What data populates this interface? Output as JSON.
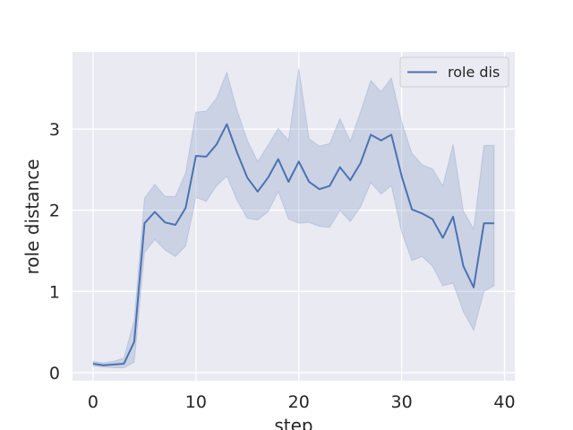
{
  "chart_data": {
    "type": "line",
    "xlabel": "step",
    "ylabel": "role distance",
    "xlim": [
      -2,
      41
    ],
    "ylim": [
      -0.1,
      3.95
    ],
    "xticks": [
      0,
      10,
      20,
      30,
      40
    ],
    "yticks": [
      0,
      1,
      2,
      3
    ],
    "grid": true,
    "legend_position": "top-right",
    "colors": {
      "line": "#4c72b0",
      "band": "#4c72b0",
      "background": "#eaeaf2",
      "grid": "#ffffff"
    },
    "series": [
      {
        "name": "role dis",
        "x": [
          0,
          1,
          2,
          3,
          4,
          5,
          6,
          7,
          8,
          9,
          10,
          11,
          12,
          13,
          14,
          15,
          16,
          17,
          18,
          19,
          20,
          21,
          22,
          23,
          24,
          25,
          26,
          27,
          28,
          29,
          30,
          31,
          32,
          33,
          34,
          35,
          36,
          37,
          38,
          39
        ],
        "y": [
          0.11,
          0.09,
          0.1,
          0.11,
          0.38,
          1.84,
          1.98,
          1.85,
          1.82,
          2.03,
          2.67,
          2.66,
          2.81,
          3.06,
          2.71,
          2.4,
          2.23,
          2.4,
          2.63,
          2.35,
          2.6,
          2.35,
          2.26,
          2.3,
          2.53,
          2.37,
          2.58,
          2.93,
          2.86,
          2.93,
          2.42,
          2.01,
          1.96,
          1.89,
          1.66,
          1.92,
          1.31,
          1.05,
          1.84,
          1.84
        ],
        "lower": [
          0.08,
          0.07,
          0.06,
          0.06,
          0.13,
          1.48,
          1.64,
          1.51,
          1.43,
          1.56,
          2.16,
          2.11,
          2.3,
          2.42,
          2.12,
          1.9,
          1.88,
          1.98,
          2.23,
          1.89,
          1.84,
          1.85,
          1.8,
          1.79,
          2.0,
          1.86,
          2.04,
          2.34,
          2.2,
          2.3,
          1.73,
          1.38,
          1.43,
          1.31,
          1.07,
          1.1,
          0.75,
          0.52,
          1.0,
          1.07
        ],
        "upper": [
          0.14,
          0.12,
          0.14,
          0.18,
          0.65,
          2.15,
          2.32,
          2.17,
          2.17,
          2.46,
          3.21,
          3.22,
          3.38,
          3.7,
          3.23,
          2.86,
          2.6,
          2.8,
          3.01,
          2.86,
          3.75,
          2.88,
          2.79,
          2.82,
          3.13,
          2.85,
          3.21,
          3.6,
          3.46,
          3.63,
          3.09,
          2.7,
          2.56,
          2.51,
          2.3,
          2.81,
          1.99,
          1.77,
          2.8,
          2.8
        ]
      }
    ]
  }
}
